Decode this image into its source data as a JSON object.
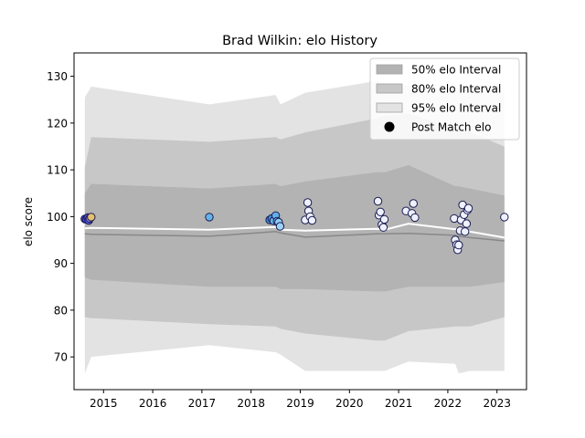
{
  "chart_data": {
    "type": "line",
    "title": "Brad Wilkin: elo History",
    "xlabel": "",
    "ylabel": "elo score",
    "xlim": [
      2014.4,
      2023.6
    ],
    "ylim": [
      63,
      135
    ],
    "x_ticks": [
      2015,
      2016,
      2017,
      2018,
      2019,
      2020,
      2021,
      2022,
      2023
    ],
    "y_ticks": [
      70,
      80,
      90,
      100,
      110,
      120,
      130
    ],
    "legend_position": "top-right",
    "legend": [
      {
        "label": "50% elo Interval",
        "kind": "band",
        "color": "#b3b3b3"
      },
      {
        "label": "80% elo Interval",
        "kind": "band",
        "color": "#c7c7c7"
      },
      {
        "label": "95% elo Interval",
        "kind": "band",
        "color": "#e3e3e3"
      },
      {
        "label": "Post Match elo",
        "kind": "marker",
        "color": "#000000"
      }
    ],
    "colors": {
      "band95": "#e3e3e3",
      "band80": "#c7c7c7",
      "band50": "#b3b3b3",
      "mean_line": "#ffffff",
      "median_line": "#888888",
      "axes": "#000000"
    },
    "bands": {
      "x": [
        2014.62,
        2014.75,
        2017.15,
        2018.5,
        2018.6,
        2019.1,
        2020.55,
        2020.72,
        2021.2,
        2022.15,
        2022.22,
        2022.45,
        2023.15
      ],
      "p95_upper": [
        125.5,
        127.8,
        124.0,
        126.0,
        124.0,
        126.5,
        129.0,
        128.5,
        128.0,
        127.0,
        127.0,
        127.0,
        127.0
      ],
      "p95_lower": [
        66.5,
        70.0,
        72.5,
        71.0,
        70.5,
        67.0,
        67.0,
        67.0,
        69.0,
        68.5,
        66.5,
        67.0,
        67.0
      ],
      "p80_upper": [
        110.5,
        117.0,
        116.0,
        117.0,
        116.5,
        118.0,
        121.0,
        121.5,
        122.0,
        119.0,
        118.5,
        118.0,
        115.0
      ],
      "p80_lower": [
        78.5,
        78.3,
        77.0,
        76.5,
        76.0,
        75.0,
        73.5,
        73.5,
        75.5,
        76.5,
        76.5,
        76.5,
        78.5
      ],
      "p50_upper": [
        105.0,
        107.0,
        106.0,
        107.0,
        106.5,
        107.5,
        109.5,
        109.5,
        111.0,
        106.5,
        106.5,
        106.0,
        104.5
      ],
      "p50_lower": [
        87.0,
        86.5,
        85.0,
        85.0,
        84.5,
        84.5,
        84.0,
        84.0,
        85.0,
        85.0,
        85.0,
        85.0,
        86.0
      ]
    },
    "series": [
      {
        "kind": "mean",
        "x": [
          2014.62,
          2014.75,
          2017.15,
          2018.5,
          2018.6,
          2019.1,
          2020.55,
          2020.72,
          2021.2,
          2022.15,
          2022.22,
          2022.45,
          2023.15
        ],
        "values": [
          97.5,
          97.6,
          97.2,
          97.8,
          97.2,
          97.0,
          97.4,
          97.2,
          98.5,
          97.3,
          97.4,
          96.8,
          95.5
        ]
      },
      {
        "kind": "median",
        "x": [
          2014.62,
          2014.75,
          2017.15,
          2018.5,
          2018.6,
          2019.1,
          2020.55,
          2020.72,
          2021.2,
          2022.15,
          2022.22,
          2022.45,
          2023.15
        ],
        "values": [
          96.3,
          96.2,
          95.8,
          96.8,
          96.5,
          95.6,
          96.3,
          96.3,
          96.4,
          96.0,
          95.8,
          95.5,
          94.8
        ]
      }
    ],
    "points": [
      {
        "x": 2014.62,
        "y": 99.5,
        "color": "#4a4de8"
      },
      {
        "x": 2014.65,
        "y": 99.4,
        "color": "#4a4de8"
      },
      {
        "x": 2014.68,
        "y": 99.8,
        "color": "#4a4de8"
      },
      {
        "x": 2014.7,
        "y": 99.2,
        "color": "#5a5ef0"
      },
      {
        "x": 2014.72,
        "y": 99.6,
        "color": "#8b8ff5"
      },
      {
        "x": 2014.75,
        "y": 99.9,
        "color": "#e6c06a"
      },
      {
        "x": 2017.15,
        "y": 99.9,
        "color": "#64b3e8"
      },
      {
        "x": 2018.38,
        "y": 99.3,
        "color": "#3d8fd6"
      },
      {
        "x": 2018.42,
        "y": 99.6,
        "color": "#3d8fd6"
      },
      {
        "x": 2018.46,
        "y": 99.1,
        "color": "#6ab6ef"
      },
      {
        "x": 2018.5,
        "y": 100.2,
        "color": "#5fb0ec"
      },
      {
        "x": 2018.53,
        "y": 99.0,
        "color": "#78c0f2"
      },
      {
        "x": 2018.56,
        "y": 98.8,
        "color": "#8fccf5"
      },
      {
        "x": 2018.59,
        "y": 97.9,
        "color": "#9dd2f7"
      },
      {
        "x": 2019.1,
        "y": 99.3,
        "color": "#eef1ff"
      },
      {
        "x": 2019.15,
        "y": 103.0,
        "color": "#eef1ff"
      },
      {
        "x": 2019.17,
        "y": 101.2,
        "color": "#eef1ff"
      },
      {
        "x": 2019.2,
        "y": 100.0,
        "color": "#eef1ff"
      },
      {
        "x": 2019.24,
        "y": 99.2,
        "color": "#eef1ff"
      },
      {
        "x": 2020.58,
        "y": 103.3,
        "color": "#eef1ff"
      },
      {
        "x": 2020.6,
        "y": 100.3,
        "color": "#eef1ff"
      },
      {
        "x": 2020.63,
        "y": 101.0,
        "color": "#eef1ff"
      },
      {
        "x": 2020.66,
        "y": 98.3,
        "color": "#eef1ff"
      },
      {
        "x": 2020.69,
        "y": 97.7,
        "color": "#eef1ff"
      },
      {
        "x": 2020.71,
        "y": 99.4,
        "color": "#eef1ff"
      },
      {
        "x": 2021.15,
        "y": 101.2,
        "color": "#eef1ff"
      },
      {
        "x": 2021.27,
        "y": 100.7,
        "color": "#eef1ff"
      },
      {
        "x": 2021.3,
        "y": 102.8,
        "color": "#eef1ff"
      },
      {
        "x": 2021.33,
        "y": 99.8,
        "color": "#eef1ff"
      },
      {
        "x": 2022.13,
        "y": 99.6,
        "color": "#eef1ff"
      },
      {
        "x": 2022.15,
        "y": 95.0,
        "color": "#eef1ff"
      },
      {
        "x": 2022.18,
        "y": 94.0,
        "color": "#eef1ff"
      },
      {
        "x": 2022.2,
        "y": 92.9,
        "color": "#eef1ff"
      },
      {
        "x": 2022.22,
        "y": 93.9,
        "color": "#eef1ff"
      },
      {
        "x": 2022.25,
        "y": 97.0,
        "color": "#eef1ff"
      },
      {
        "x": 2022.27,
        "y": 99.3,
        "color": "#eef1ff"
      },
      {
        "x": 2022.3,
        "y": 102.5,
        "color": "#eef1ff"
      },
      {
        "x": 2022.33,
        "y": 100.4,
        "color": "#eef1ff"
      },
      {
        "x": 2022.35,
        "y": 96.8,
        "color": "#eef1ff"
      },
      {
        "x": 2022.38,
        "y": 98.5,
        "color": "#eef1ff"
      },
      {
        "x": 2022.4,
        "y": 101.4,
        "color": "#eef1ff"
      },
      {
        "x": 2022.42,
        "y": 101.8,
        "color": "#eef1ff"
      },
      {
        "x": 2023.15,
        "y": 99.9,
        "color": "#eef1ff"
      }
    ]
  }
}
